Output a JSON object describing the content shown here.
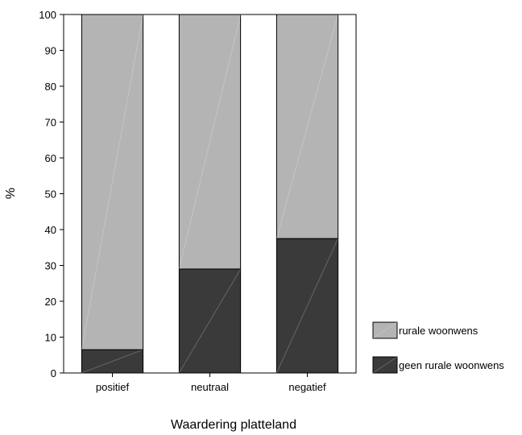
{
  "chart_data": {
    "type": "bar",
    "stacked": true,
    "categories": [
      "positief",
      "neutraal",
      "negatief"
    ],
    "series": [
      {
        "name": "geen rurale woonwens",
        "values": [
          6.5,
          29,
          37.5
        ],
        "color": "#3a3a3a"
      },
      {
        "name": "rurale woonwens",
        "values": [
          93.5,
          71,
          62.5
        ],
        "color": "#b4b4b4"
      }
    ],
    "xlabel": "Waardering platteland",
    "ylabel": "%",
    "ylim": [
      0,
      100
    ],
    "yticks": [
      0,
      10,
      20,
      30,
      40,
      50,
      60,
      70,
      80,
      90,
      100
    ],
    "grid": false,
    "legend": [
      "rurale woonwens",
      "geen rurale woonwens"
    ],
    "legend_position": "bottom-right"
  }
}
